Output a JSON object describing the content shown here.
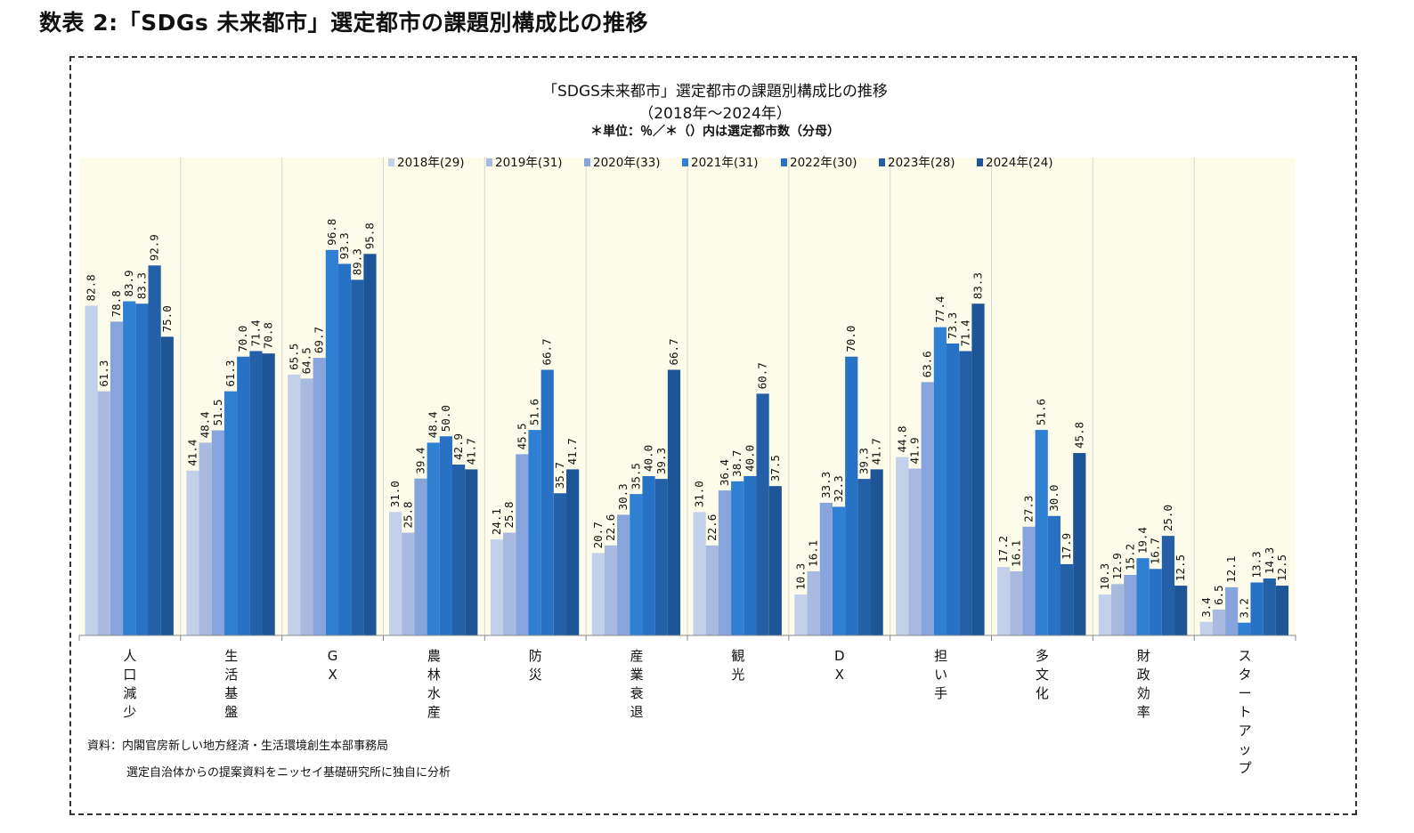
{
  "heading": "数表 2:「SDGs 未来都市」選定都市の課題別構成比の推移",
  "chart_data": {
    "type": "bar",
    "title": "「SDGS未来都市」選定都市の課題別構成比の推移",
    "subtitle": "（2018年～2024年）",
    "note": "＊単位：％／＊（）内は選定都市数（分母）",
    "categories": [
      "人口減少",
      "生活基盤",
      "GX",
      "農林水産",
      "防災",
      "産業衰退",
      "観光",
      "DX",
      "担い手",
      "多文化",
      "財政効率",
      "スタートアップ"
    ],
    "series": [
      {
        "name": "2018年(29)",
        "color": "#c3d0ea",
        "values": [
          82.8,
          41.4,
          65.5,
          31.0,
          24.1,
          20.7,
          31.0,
          10.3,
          44.8,
          17.2,
          10.3,
          3.4
        ]
      },
      {
        "name": "2019年(31)",
        "color": "#a8badf",
        "values": [
          61.3,
          48.4,
          64.5,
          25.8,
          25.8,
          22.6,
          22.6,
          16.1,
          41.9,
          16.1,
          12.9,
          6.5
        ]
      },
      {
        "name": "2020年(33)",
        "color": "#87a5dc",
        "values": [
          78.8,
          51.5,
          69.7,
          39.4,
          45.5,
          30.3,
          36.4,
          33.3,
          63.6,
          27.3,
          15.2,
          12.1
        ]
      },
      {
        "name": "2021年(31)",
        "color": "#2f7fd3",
        "values": [
          83.9,
          61.3,
          96.8,
          48.4,
          51.6,
          35.5,
          38.7,
          32.3,
          77.4,
          51.6,
          19.4,
          3.2
        ]
      },
      {
        "name": "2022年(30)",
        "color": "#2872c6",
        "values": [
          83.3,
          70.0,
          93.3,
          50.0,
          66.7,
          40.0,
          40.0,
          70.0,
          73.3,
          30.0,
          16.7,
          13.3
        ]
      },
      {
        "name": "2023年(28)",
        "color": "#2460a8",
        "values": [
          92.9,
          71.4,
          89.3,
          42.9,
          35.7,
          39.3,
          60.7,
          39.3,
          71.4,
          17.9,
          25.0,
          14.3
        ]
      },
      {
        "name": "2024年(24)",
        "color": "#1e5596",
        "values": [
          75.0,
          70.8,
          95.8,
          41.7,
          41.7,
          66.7,
          37.5,
          41.7,
          83.3,
          45.8,
          12.5,
          12.5
        ]
      }
    ],
    "value_labels": [
      [
        "82.8",
        "41.4",
        "65.5",
        "31.0",
        "24.1",
        "20.7",
        "31.0",
        "10.3",
        "44.8",
        "17.2",
        "10.3",
        "3.4"
      ],
      [
        "61.3",
        "48.4",
        "64.5",
        "25.8",
        "25.8",
        "22.6",
        "22.6",
        "16.1",
        "41.9",
        "16.1",
        "12.9",
        "6.5"
      ],
      [
        "78.8",
        "51.5",
        "69.7",
        "39.4",
        "45.5",
        "30.3",
        "36.4",
        "33.3",
        "63.6",
        "27.3",
        "15.2",
        "12.1"
      ],
      [
        "83.9",
        "61.3",
        "96.8",
        "48.4",
        "51.6",
        "35.5",
        "38.7",
        "32.3",
        "77.4",
        "51.6",
        "19.4",
        "3.2"
      ],
      [
        "83.3",
        "70.0",
        "93.3",
        "50.0",
        "66.7",
        "40.0",
        "40.0",
        "70.0",
        "73.3",
        "30.0",
        "16.7",
        "13.3"
      ],
      [
        "92.9",
        "71.4",
        "89.3",
        "42.9",
        "35.7",
        "39.3",
        "60.7",
        "39.3",
        "71.4",
        "17.9",
        "25.0",
        "14.3"
      ],
      [
        "75.0",
        "70.8",
        "95.8",
        "41.7",
        "41.7",
        "66.7",
        "37.5",
        "41.7",
        "83.3",
        "45.8",
        "12.5",
        "12.5"
      ]
    ],
    "ylim": [
      0,
      120
    ],
    "legend_position": "top",
    "background_color": "#fdfbe9",
    "grid": false
  },
  "source": {
    "line1": "資料：内閣官房新しい地方経済・生活環境創生本部事務局",
    "line2": "選定自治体からの提案資料をニッセイ基礎研究所に独自に分析"
  }
}
